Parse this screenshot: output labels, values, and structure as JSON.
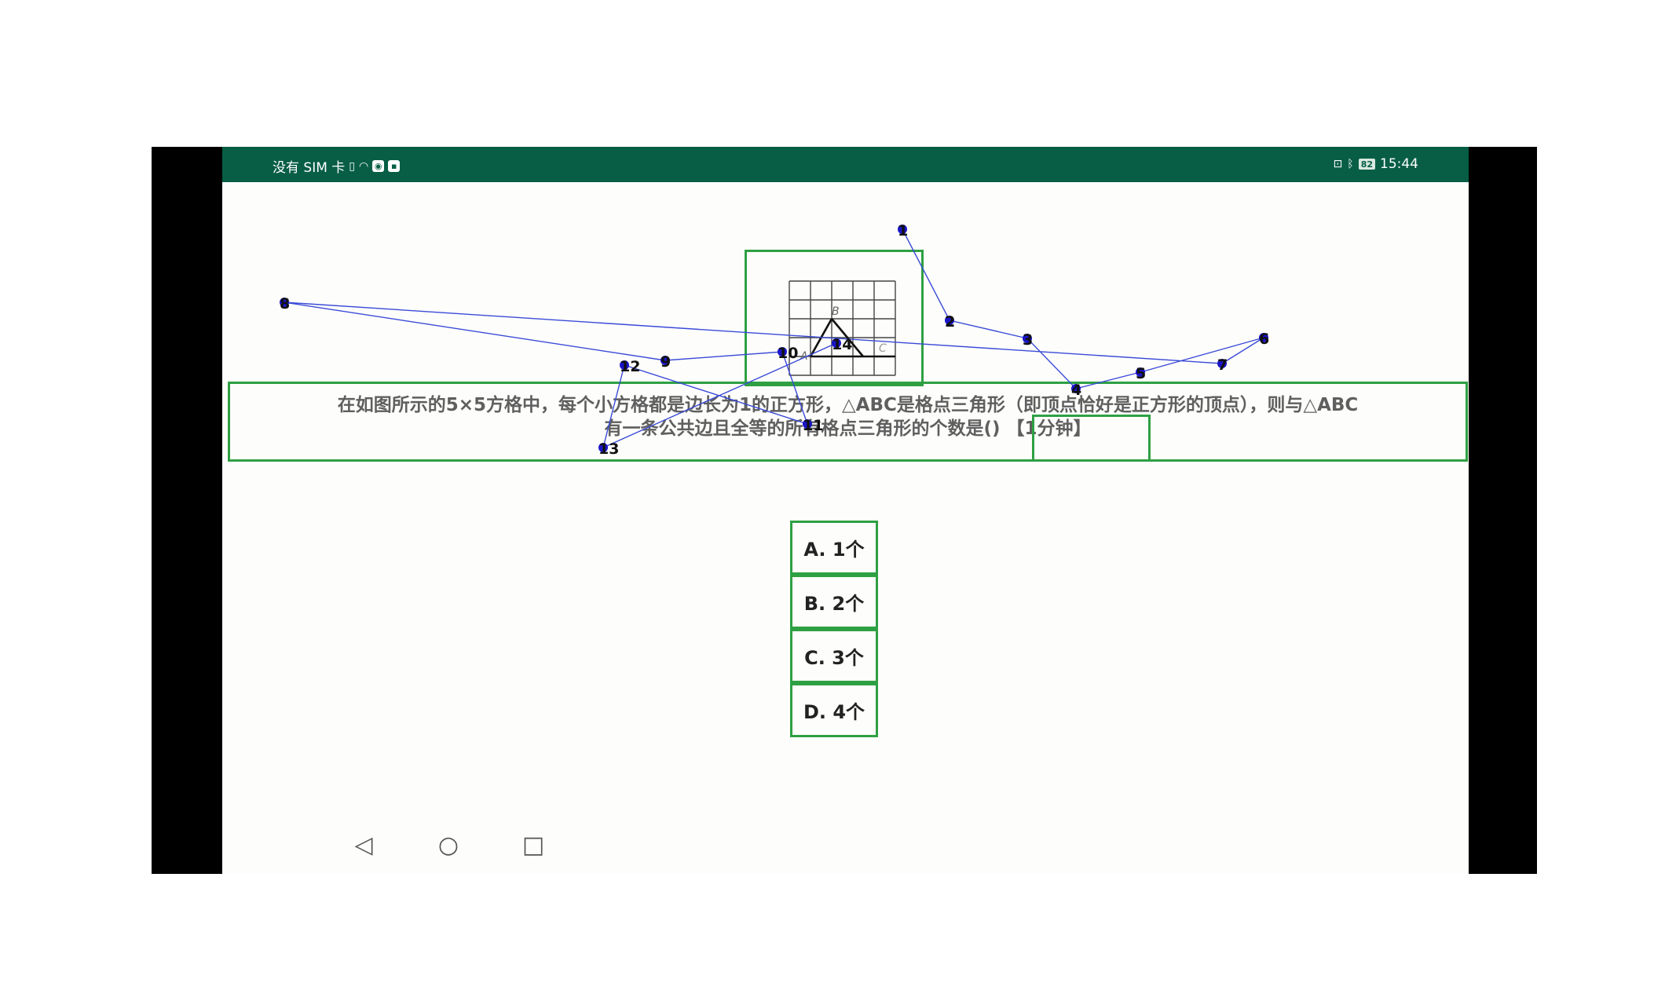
{
  "status_bar": {
    "carrier": "没有 SIM 卡",
    "battery": "82",
    "time": "15:44"
  },
  "question": {
    "text_line1": "在如图所示的5×5方格中，每个小方格都是边长为1的正方形，△ABC是格点三角形（即顶点恰好是正方形的顶点），则与△ABC",
    "text_line2": "有一条公共边且全等的所有格点三角形的个数是()",
    "time_hint": "【1分钟】",
    "figure_labels": {
      "a": "A",
      "b": "B",
      "c": "C"
    }
  },
  "options": [
    {
      "label": "A. 1个"
    },
    {
      "label": "B. 2个"
    },
    {
      "label": "C. 3个"
    },
    {
      "label": "D. 4个"
    }
  ],
  "nav": {
    "back": "◁",
    "home": "○",
    "recents": "□"
  },
  "trace_labels": [
    "1",
    "2",
    "3",
    "4",
    "5",
    "6",
    "7",
    "8",
    "9",
    "10",
    "11",
    "12",
    "13",
    "14"
  ],
  "colors": {
    "status_bar": "#075e45",
    "box_outline": "#2ea043",
    "trace_line": "#3a4bd8",
    "trace_point": "#1a14c8"
  }
}
